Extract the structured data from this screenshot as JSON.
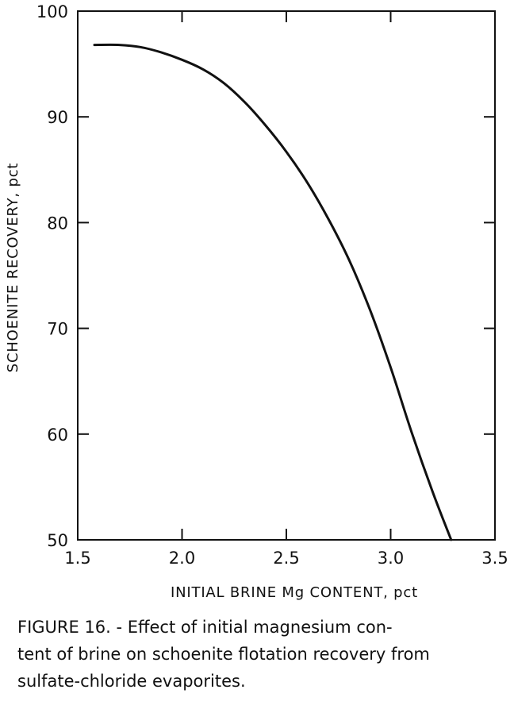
{
  "chart_data": {
    "type": "line",
    "xlabel": "INITIAL BRINE Mg CONTENT, pct",
    "ylabel": "SCHOENITE RECOVERY, pct",
    "xlim": [
      1.5,
      3.5
    ],
    "ylim": [
      50,
      100
    ],
    "x_ticks": [
      1.5,
      2.0,
      2.5,
      3.0,
      3.5
    ],
    "x_tick_labels": [
      "1.5",
      "2.0",
      "2.5",
      "3.0",
      "3.5"
    ],
    "y_ticks": [
      50,
      60,
      70,
      80,
      90,
      100
    ],
    "y_tick_labels": [
      "50",
      "60",
      "70",
      "80",
      "90",
      "100"
    ],
    "grid": false,
    "series": [
      {
        "x": [
          1.58,
          1.7,
          1.8,
          1.9,
          2.0,
          2.1,
          2.2,
          2.3,
          2.4,
          2.5,
          2.6,
          2.7,
          2.8,
          2.9,
          3.0,
          3.1,
          3.2,
          3.29
        ],
        "y": [
          96.8,
          96.8,
          96.6,
          96.1,
          95.4,
          94.5,
          93.2,
          91.4,
          89.2,
          86.7,
          83.8,
          80.4,
          76.5,
          71.8,
          66.3,
          60.2,
          54.6,
          50.0
        ]
      }
    ],
    "line_color": "#111111"
  },
  "caption": {
    "lines": [
      "FIGURE 16. - Effect of initial magnesium con-",
      "tent of brine on schoenite flotation recovery from",
      "sulfate-chloride evaporites."
    ]
  }
}
